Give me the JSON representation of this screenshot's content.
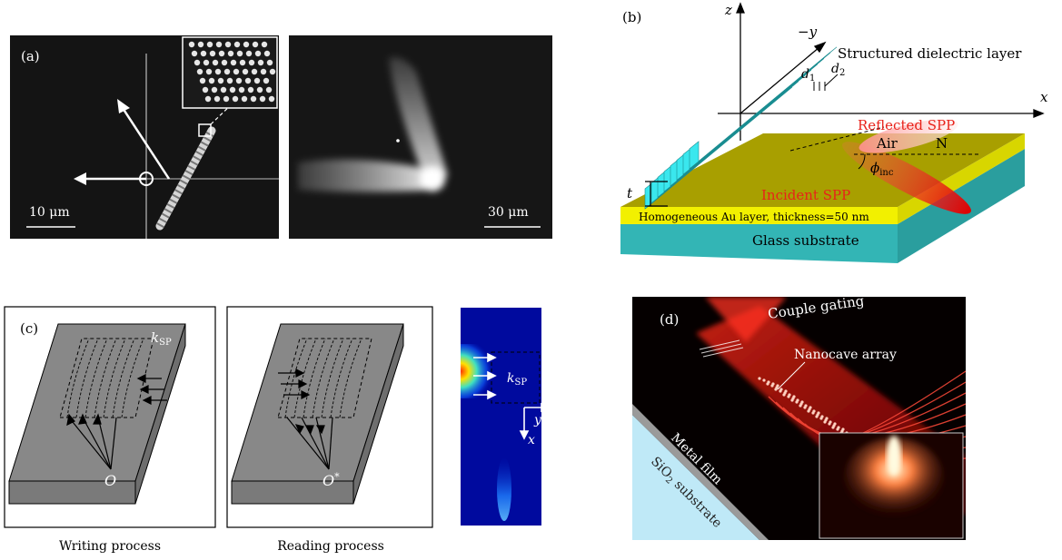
{
  "panel_a": {
    "label": "(a)",
    "scale_left": "10 μm",
    "scale_right": "30 μm"
  },
  "panel_b": {
    "label": "(b)",
    "axis_z": "z",
    "axis_minus_y": "−y",
    "axis_x": "x",
    "structured_layer": "Structured dielectric layer",
    "d1": "d",
    "d1_sub": "1",
    "d2": "d",
    "d2_sub": "2",
    "reflected": "Reflected SPP",
    "air": "Air",
    "n_label": "N",
    "phi": "ϕ",
    "phi_sub": "inc",
    "incident": "Incident SPP",
    "t": "t",
    "au_layer": "Homogeneous Au layer, thickness=50 nm",
    "glass": "Glass substrate"
  },
  "panel_c": {
    "label": "(c)",
    "k": "k",
    "k_sub": "SP",
    "origin": "O",
    "origin_star": "O",
    "star": "*",
    "y": "y",
    "x": "x",
    "writing": "Writing process",
    "reading": "Reading process"
  },
  "panel_d": {
    "label": "(d)",
    "couple": "Couple gating",
    "nanocave": "Nanocave array",
    "metal": "Metal film",
    "sio2": "SiO",
    "sio2_sub": "2",
    "substrate": "substrate"
  },
  "colors": {
    "gold": "#a89f00",
    "yellow": "#f2f000",
    "teal": "#33b5b5",
    "cyan": "#38e8ee",
    "red": "#e8221a",
    "grey": "#888888"
  }
}
